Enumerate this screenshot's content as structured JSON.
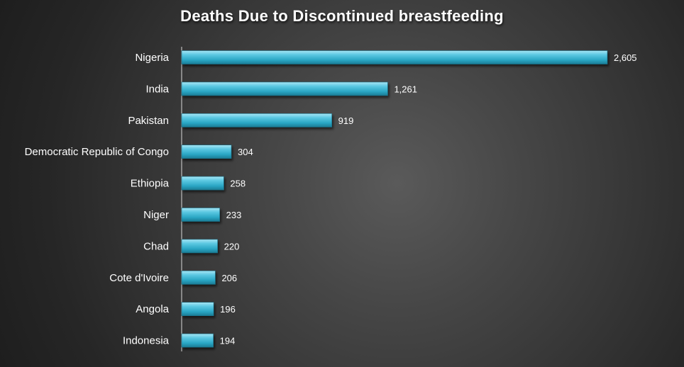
{
  "chart_data": {
    "type": "bar",
    "orientation": "horizontal",
    "title": "Deaths Due to Discontinued breastfeeding",
    "categories": [
      "Nigeria",
      "India",
      "Pakistan",
      "Democratic Republic of Congo",
      "Ethiopia",
      "Niger",
      "Chad",
      "Cote d'Ivoire",
      "Angola",
      "Indonesia"
    ],
    "values": [
      2605,
      1261,
      919,
      304,
      258,
      233,
      220,
      206,
      196,
      194
    ],
    "value_labels": [
      "2,605",
      "1,261",
      "919",
      "304",
      "258",
      "233",
      "220",
      "206",
      "196",
      "194"
    ],
    "xlabel": "",
    "ylabel": "",
    "xlim": [
      0,
      2605
    ],
    "grid": false,
    "legend": "none",
    "bar_color": "#3bb6d2",
    "background_color": "#2b2b2b"
  }
}
